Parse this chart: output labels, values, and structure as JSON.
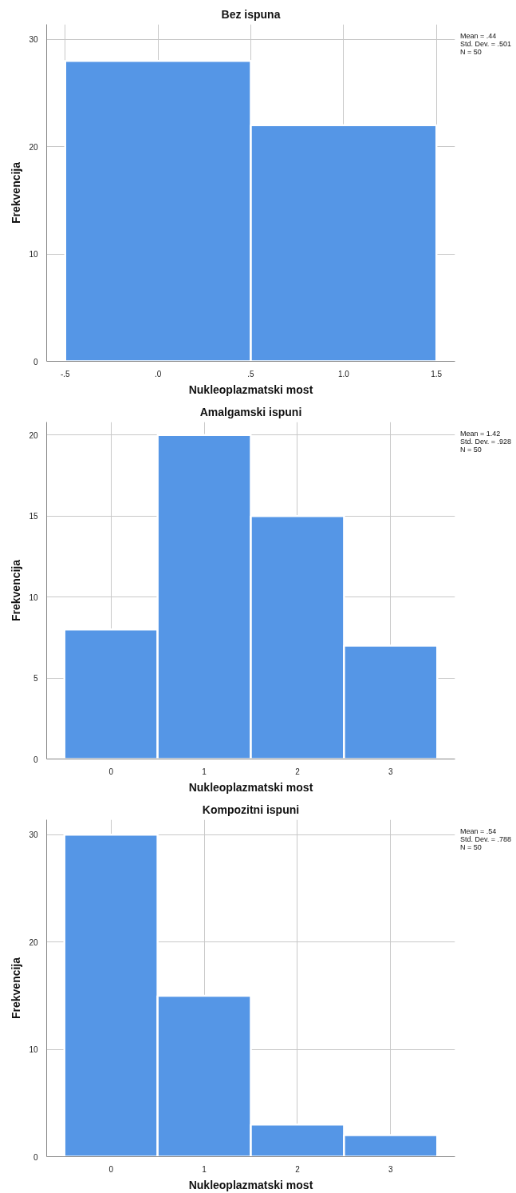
{
  "chart_data": [
    {
      "type": "histogram",
      "title": "Bez ispuna",
      "xlabel": "Nukleoplazmatski most",
      "ylabel": "Frekvencija",
      "bins": [
        -0.5,
        0.5,
        1.5
      ],
      "values": [
        28,
        22
      ],
      "color": "#5596e6",
      "xlim": [
        -0.6,
        1.6
      ],
      "xticks": [
        {
          "value": -0.5,
          "label": "-.5"
        },
        {
          "value": 0,
          "label": ".0"
        },
        {
          "value": 0.5,
          "label": ".5"
        },
        {
          "value": 1,
          "label": "1.0"
        },
        1.5
      ],
      "ylim": [
        0,
        31.4
      ],
      "yticks": [
        0,
        10,
        20,
        30
      ],
      "grid": true,
      "annotations": [
        "Mean = .44",
        "Std. Dev. = .501",
        "N = 50"
      ]
    },
    {
      "type": "bar",
      "title": "Amalgamski ispuni",
      "xlabel": "Nukleoplazmatski most",
      "ylabel": "Frekvencija",
      "categories": [
        "0",
        "1",
        "2",
        "3"
      ],
      "values": [
        8,
        20,
        15,
        7
      ],
      "color": "#5596e6",
      "ylim": [
        0,
        20.8
      ],
      "yticks": [
        0,
        5,
        10,
        15,
        20
      ],
      "grid": true,
      "annotations": [
        "Mean = 1.42",
        "Std. Dev. = .928",
        "N = 50"
      ]
    },
    {
      "type": "bar",
      "title": "Kompozitni ispuni",
      "xlabel": "Nukleoplazmatski most",
      "ylabel": "Frekvencija",
      "categories": [
        "0",
        "1",
        "2",
        "3"
      ],
      "values": [
        30,
        15,
        3,
        2
      ],
      "color": "#5596e6",
      "ylim": [
        0,
        31.4
      ],
      "yticks": [
        0,
        10,
        20,
        30
      ],
      "grid": true,
      "annotations": [
        "Mean = .54",
        "Std. Dev. = .788",
        "N = 50"
      ]
    }
  ]
}
